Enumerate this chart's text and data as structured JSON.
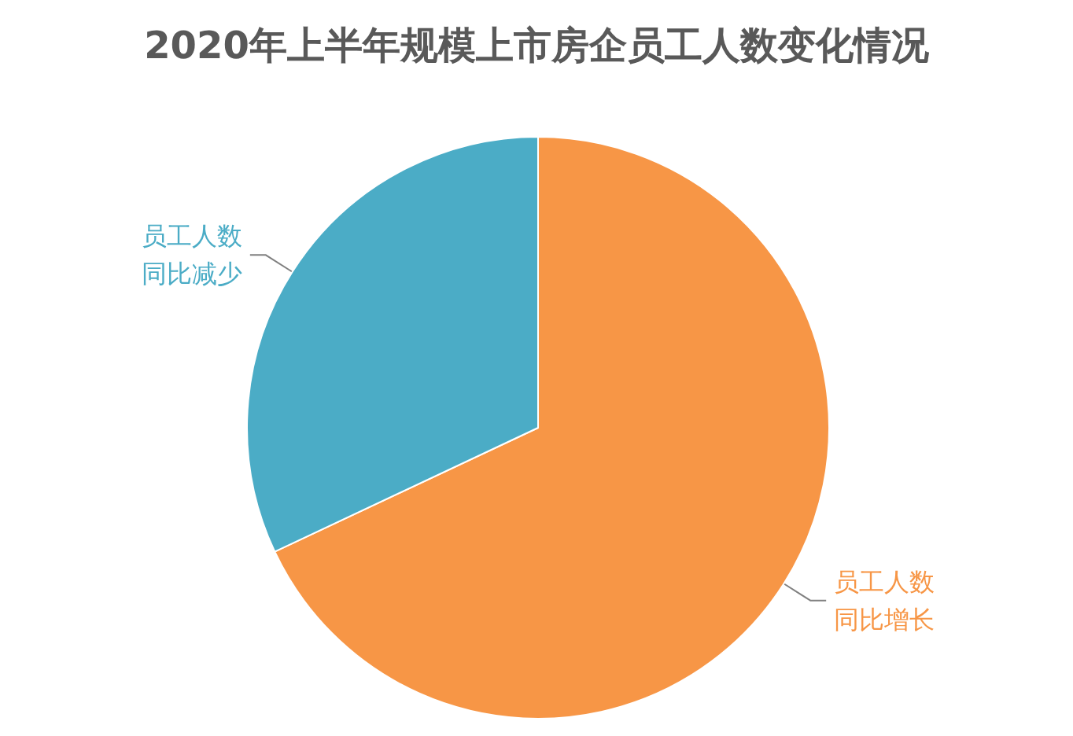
{
  "chart_data": {
    "type": "pie",
    "title": "2020年上半年规模上市房企员工人数变化情况",
    "categories": [
      "员工人数同比增长",
      "员工人数同比减少"
    ],
    "values": [
      68,
      32
    ],
    "colors": [
      "#f79646",
      "#4bacc6"
    ],
    "legend": false
  }
}
